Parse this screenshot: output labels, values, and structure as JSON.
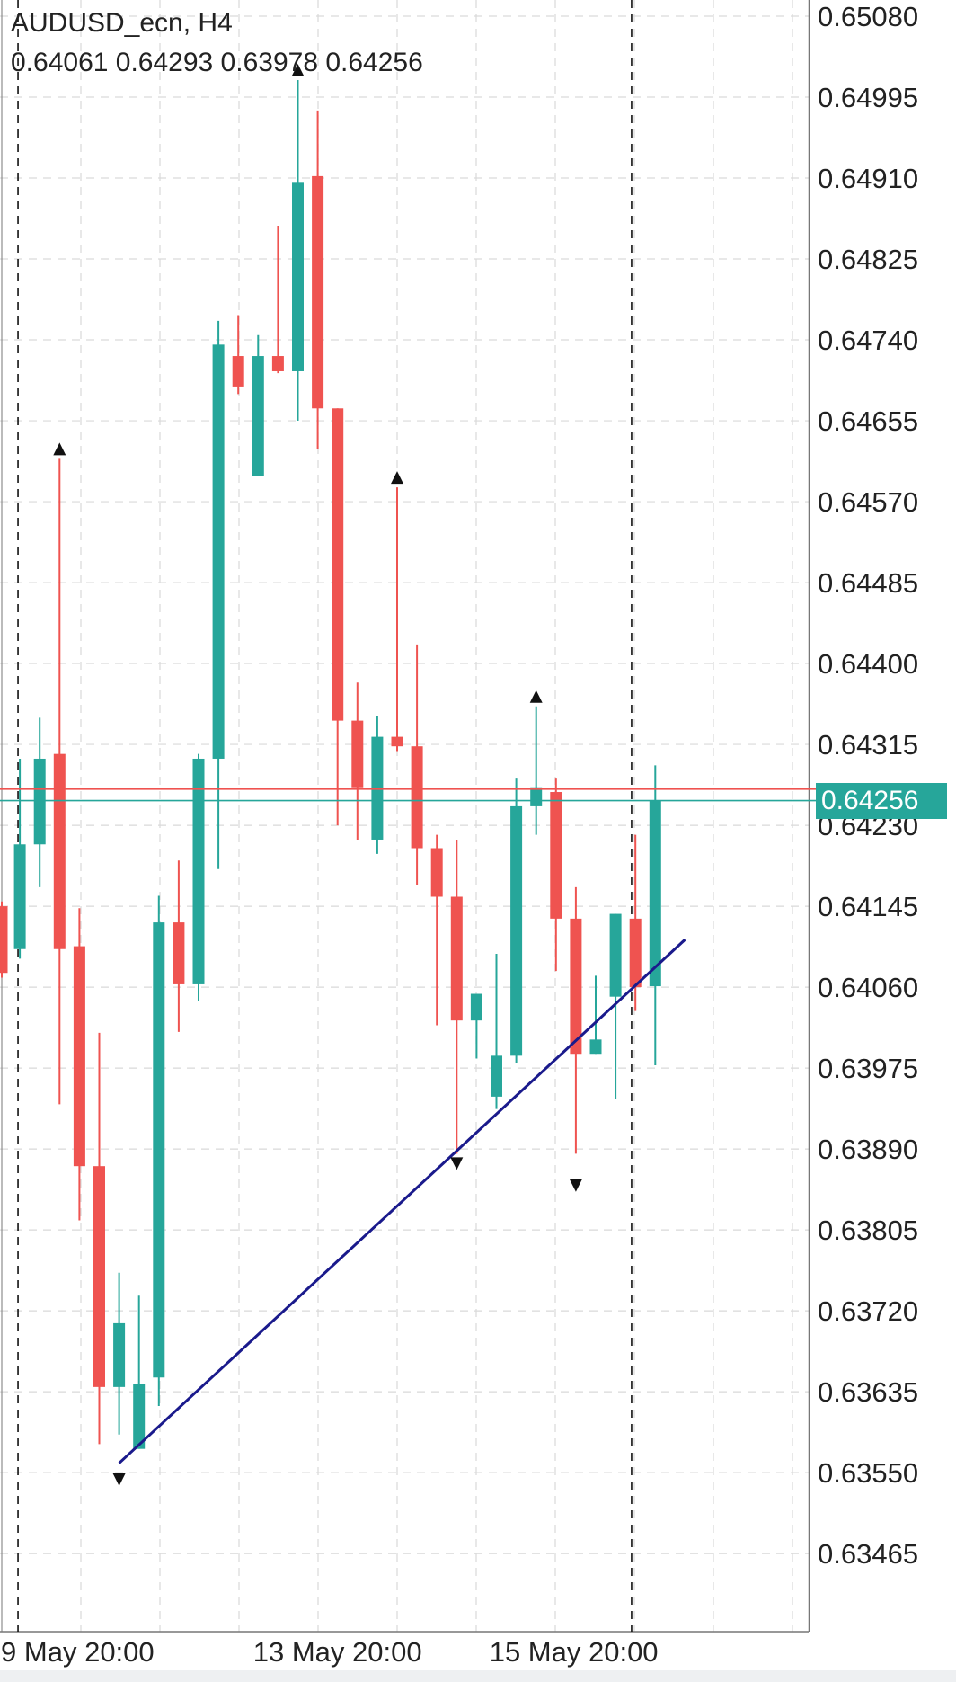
{
  "header": {
    "symbol_timeframe": "AUDUSD_ecn, H4",
    "ohlc": "0.64061 0.64293 0.63978 0.64256"
  },
  "colors": {
    "bull": "#26a69a",
    "bear": "#ef5350",
    "trendline": "#1a1a8c",
    "grid": "#d9d9d9",
    "arrow": "#111111",
    "ask_line": "#ef5350",
    "bid_line": "#26a69a"
  },
  "price_tag": {
    "label": "0.64256",
    "price": 0.64256
  },
  "ask_price": 0.64268,
  "chart_data": {
    "type": "candlestick",
    "title": "AUDUSD_ecn, H4",
    "price_axis_ticks": [
      "0.65080",
      "0.64995",
      "0.64910",
      "0.64825",
      "0.64740",
      "0.64655",
      "0.64570",
      "0.64485",
      "0.64400",
      "0.64315",
      "0.64230",
      "0.64145",
      "0.64060",
      "0.63975",
      "0.63890",
      "0.63805",
      "0.63720",
      "0.63635",
      "0.63550",
      "0.63465"
    ],
    "ylim": [
      0.63383,
      0.65097
    ],
    "time_axis_labels": [
      {
        "label": "9 May 20:00",
        "bar": 0.5
      },
      {
        "label": "13 May 20:00",
        "bar": 13.2
      },
      {
        "label": "15 May 20:00",
        "bar": 25.1
      }
    ],
    "candles": [
      {
        "o": 0.64145,
        "h": 0.6415,
        "l": 0.6407,
        "c": 0.64075
      },
      {
        "o": 0.641,
        "h": 0.643,
        "l": 0.6409,
        "c": 0.6421
      },
      {
        "o": 0.6421,
        "h": 0.64343,
        "l": 0.64165,
        "c": 0.643
      },
      {
        "o": 0.64305,
        "h": 0.64615,
        "l": 0.63937,
        "c": 0.641
      },
      {
        "o": 0.64103,
        "h": 0.64143,
        "l": 0.63815,
        "c": 0.63872
      },
      {
        "o": 0.63872,
        "h": 0.64012,
        "l": 0.6358,
        "c": 0.6364
      },
      {
        "o": 0.6364,
        "h": 0.6376,
        "l": 0.6359,
        "c": 0.63707
      },
      {
        "o": 0.63575,
        "h": 0.63736,
        "l": 0.63575,
        "c": 0.63643
      },
      {
        "o": 0.6365,
        "h": 0.64156,
        "l": 0.6362,
        "c": 0.64128
      },
      {
        "o": 0.64128,
        "h": 0.64193,
        "l": 0.64013,
        "c": 0.64063
      },
      {
        "o": 0.64063,
        "h": 0.64305,
        "l": 0.64045,
        "c": 0.643
      },
      {
        "o": 0.643,
        "h": 0.6476,
        "l": 0.64184,
        "c": 0.64735
      },
      {
        "o": 0.64723,
        "h": 0.64766,
        "l": 0.64683,
        "c": 0.64691
      },
      {
        "o": 0.64597,
        "h": 0.64745,
        "l": 0.64597,
        "c": 0.64723
      },
      {
        "o": 0.64723,
        "h": 0.6486,
        "l": 0.64705,
        "c": 0.64707
      },
      {
        "o": 0.64707,
        "h": 0.65013,
        "l": 0.64655,
        "c": 0.64905
      },
      {
        "o": 0.64912,
        "h": 0.64981,
        "l": 0.64625,
        "c": 0.64668
      },
      {
        "o": 0.64668,
        "h": 0.64668,
        "l": 0.6423,
        "c": 0.6434
      },
      {
        "o": 0.6434,
        "h": 0.6438,
        "l": 0.64215,
        "c": 0.6427
      },
      {
        "o": 0.64215,
        "h": 0.64345,
        "l": 0.642,
        "c": 0.64323
      },
      {
        "o": 0.64323,
        "h": 0.64585,
        "l": 0.64308,
        "c": 0.64313
      },
      {
        "o": 0.64313,
        "h": 0.6442,
        "l": 0.64167,
        "c": 0.64206
      },
      {
        "o": 0.64206,
        "h": 0.6422,
        "l": 0.6402,
        "c": 0.64155
      },
      {
        "o": 0.64155,
        "h": 0.64215,
        "l": 0.63885,
        "c": 0.64025
      },
      {
        "o": 0.64025,
        "h": 0.64053,
        "l": 0.63985,
        "c": 0.64053
      },
      {
        "o": 0.63945,
        "h": 0.64095,
        "l": 0.63932,
        "c": 0.63988
      },
      {
        "o": 0.63988,
        "h": 0.6428,
        "l": 0.6398,
        "c": 0.6425
      },
      {
        "o": 0.6425,
        "h": 0.64355,
        "l": 0.6422,
        "c": 0.6427
      },
      {
        "o": 0.64265,
        "h": 0.6428,
        "l": 0.64077,
        "c": 0.64132
      },
      {
        "o": 0.64132,
        "h": 0.64165,
        "l": 0.63885,
        "c": 0.6399
      },
      {
        "o": 0.6399,
        "h": 0.64072,
        "l": 0.6399,
        "c": 0.64005
      },
      {
        "o": 0.6405,
        "h": 0.64137,
        "l": 0.63942,
        "c": 0.64137
      },
      {
        "o": 0.64132,
        "h": 0.6422,
        "l": 0.64035,
        "c": 0.6406
      },
      {
        "o": 0.64061,
        "h": 0.64293,
        "l": 0.63978,
        "c": 0.64256
      }
    ],
    "fractal_arrows": [
      {
        "bar": 3,
        "direction": "up",
        "price": 0.64615
      },
      {
        "bar": 6,
        "direction": "down",
        "price": 0.63553
      },
      {
        "bar": 15,
        "direction": "up",
        "price": 0.65013
      },
      {
        "bar": 20,
        "direction": "up",
        "price": 0.64585
      },
      {
        "bar": 23,
        "direction": "down",
        "price": 0.63885
      },
      {
        "bar": 27,
        "direction": "up",
        "price": 0.64355
      },
      {
        "bar": 29,
        "direction": "down",
        "price": 0.63862
      }
    ],
    "trendline": {
      "from": {
        "bar": 6,
        "price": 0.6356
      },
      "to": {
        "bar": 34.5,
        "price": 0.6411
      }
    },
    "vertical_separators": [
      0.5,
      31.4
    ]
  }
}
